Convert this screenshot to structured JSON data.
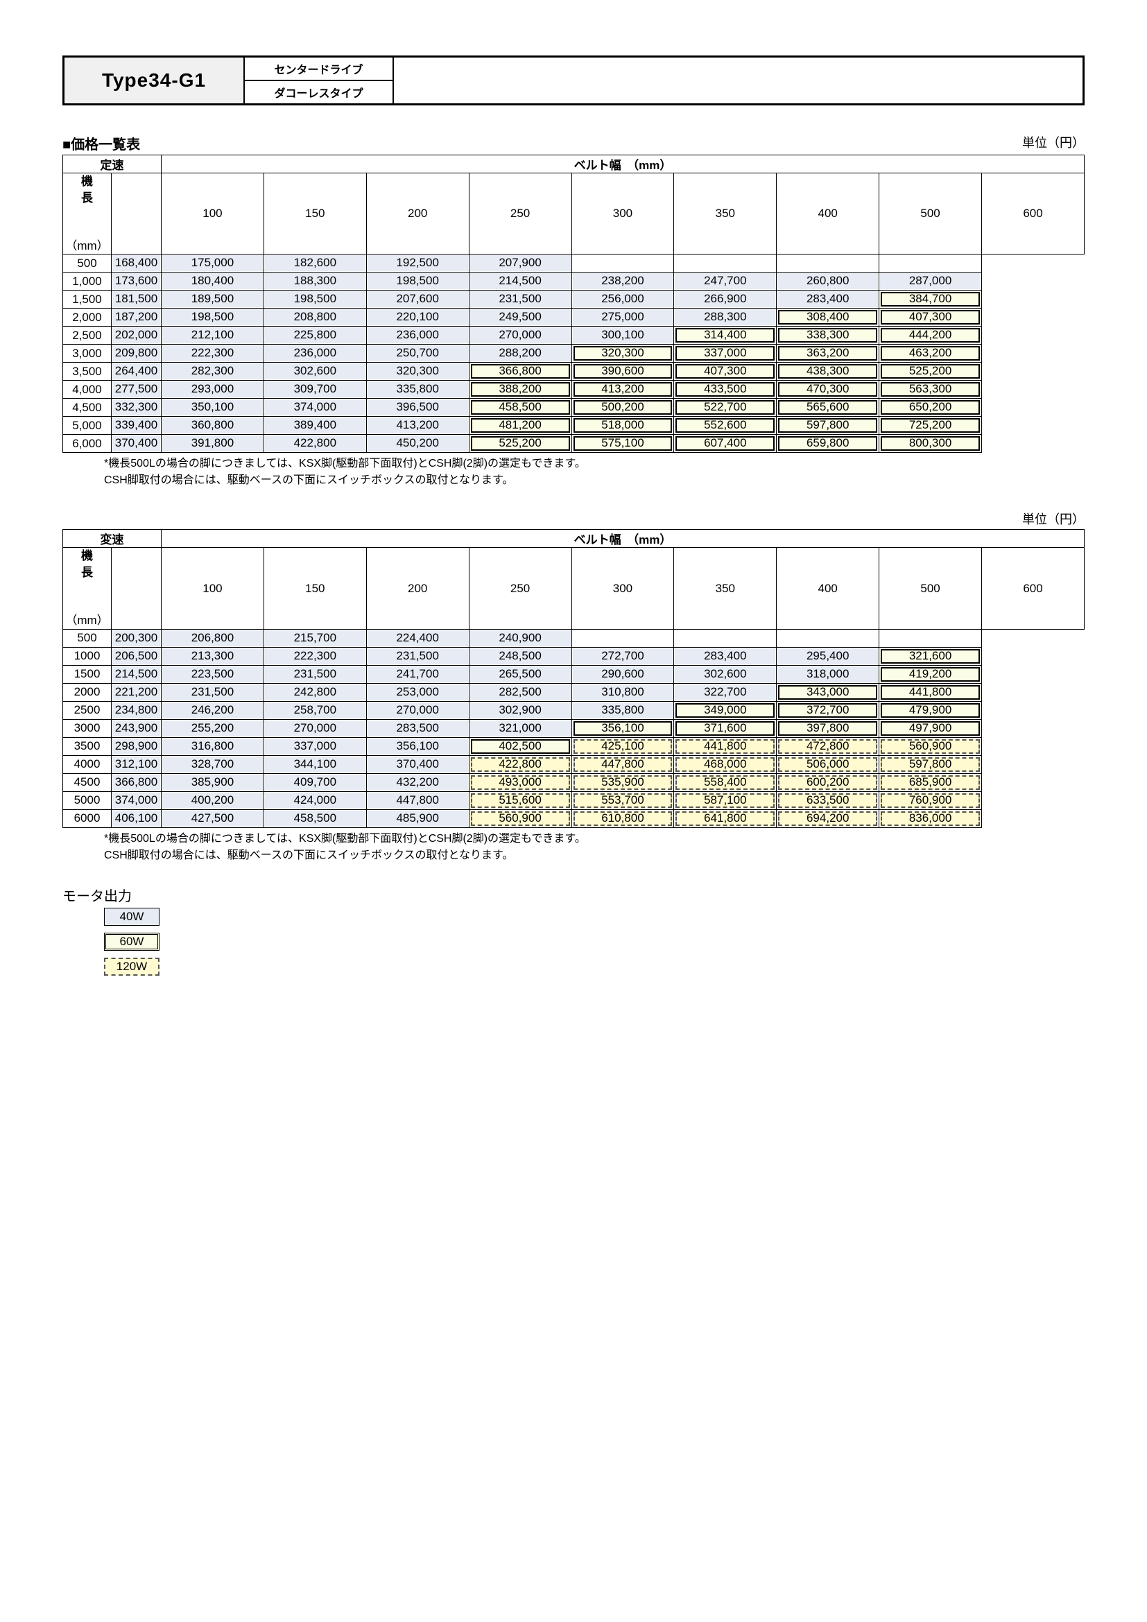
{
  "header": {
    "type": "Type34-G1",
    "line1": "センタードライブ",
    "line2": "ダコーレスタイプ"
  },
  "priceList": {
    "title": "■価格一覧表",
    "unit": "単位（円）"
  },
  "labels": {
    "beltWidth": "ベルト幅　（mm）",
    "fixedSpeed": "定速",
    "varSpeed": "変速",
    "length": "機\n長",
    "lengthUnit": "（mm）"
  },
  "widths": [
    "100",
    "150",
    "200",
    "250",
    "300",
    "350",
    "400",
    "500",
    "600"
  ],
  "table1": {
    "lengths": [
      "500",
      "1,000",
      "1,500",
      "2,000",
      "2,500",
      "3,000",
      "3,500",
      "4,000",
      "4,500",
      "5,000",
      "6,000"
    ],
    "cells": [
      [
        [
          "168,400",
          "40"
        ],
        [
          "175,000",
          "40"
        ],
        [
          "182,600",
          "40"
        ],
        [
          "192,500",
          "40"
        ],
        [
          "207,900",
          "40"
        ],
        [
          "",
          "blank"
        ],
        [
          "",
          "blank"
        ],
        [
          "",
          "blank"
        ],
        [
          "",
          "blank"
        ]
      ],
      [
        [
          "173,600",
          "40"
        ],
        [
          "180,400",
          "40"
        ],
        [
          "188,300",
          "40"
        ],
        [
          "198,500",
          "40"
        ],
        [
          "214,500",
          "40"
        ],
        [
          "238,200",
          "40"
        ],
        [
          "247,700",
          "40"
        ],
        [
          "260,800",
          "40"
        ],
        [
          "287,000",
          "40"
        ]
      ],
      [
        [
          "181,500",
          "40"
        ],
        [
          "189,500",
          "40"
        ],
        [
          "198,500",
          "40"
        ],
        [
          "207,600",
          "40"
        ],
        [
          "231,500",
          "40"
        ],
        [
          "256,000",
          "40"
        ],
        [
          "266,900",
          "40"
        ],
        [
          "283,400",
          "40"
        ],
        [
          "384,700",
          "60"
        ]
      ],
      [
        [
          "187,200",
          "40"
        ],
        [
          "198,500",
          "40"
        ],
        [
          "208,800",
          "40"
        ],
        [
          "220,100",
          "40"
        ],
        [
          "249,500",
          "40"
        ],
        [
          "275,000",
          "40"
        ],
        [
          "288,300",
          "40"
        ],
        [
          "308,400",
          "60"
        ],
        [
          "407,300",
          "60"
        ]
      ],
      [
        [
          "202,000",
          "40"
        ],
        [
          "212,100",
          "40"
        ],
        [
          "225,800",
          "40"
        ],
        [
          "236,000",
          "40"
        ],
        [
          "270,000",
          "40"
        ],
        [
          "300,100",
          "40"
        ],
        [
          "314,400",
          "60"
        ],
        [
          "338,300",
          "60"
        ],
        [
          "444,200",
          "60"
        ]
      ],
      [
        [
          "209,800",
          "40"
        ],
        [
          "222,300",
          "40"
        ],
        [
          "236,000",
          "40"
        ],
        [
          "250,700",
          "40"
        ],
        [
          "288,200",
          "40"
        ],
        [
          "320,300",
          "60"
        ],
        [
          "337,000",
          "60"
        ],
        [
          "363,200",
          "60"
        ],
        [
          "463,200",
          "60"
        ]
      ],
      [
        [
          "264,400",
          "40"
        ],
        [
          "282,300",
          "40"
        ],
        [
          "302,600",
          "40"
        ],
        [
          "320,300",
          "40"
        ],
        [
          "366,800",
          "60"
        ],
        [
          "390,600",
          "60"
        ],
        [
          "407,300",
          "60"
        ],
        [
          "438,300",
          "60"
        ],
        [
          "525,200",
          "60"
        ]
      ],
      [
        [
          "277,500",
          "40"
        ],
        [
          "293,000",
          "40"
        ],
        [
          "309,700",
          "40"
        ],
        [
          "335,800",
          "40"
        ],
        [
          "388,200",
          "60"
        ],
        [
          "413,200",
          "60"
        ],
        [
          "433,500",
          "60"
        ],
        [
          "470,300",
          "60"
        ],
        [
          "563,300",
          "60"
        ]
      ],
      [
        [
          "332,300",
          "40"
        ],
        [
          "350,100",
          "40"
        ],
        [
          "374,000",
          "40"
        ],
        [
          "396,500",
          "40"
        ],
        [
          "458,500",
          "60"
        ],
        [
          "500,200",
          "60"
        ],
        [
          "522,700",
          "60"
        ],
        [
          "565,600",
          "60"
        ],
        [
          "650,200",
          "60"
        ]
      ],
      [
        [
          "339,400",
          "40"
        ],
        [
          "360,800",
          "40"
        ],
        [
          "389,400",
          "40"
        ],
        [
          "413,200",
          "40"
        ],
        [
          "481,200",
          "60"
        ],
        [
          "518,000",
          "60"
        ],
        [
          "552,600",
          "60"
        ],
        [
          "597,800",
          "60"
        ],
        [
          "725,200",
          "60"
        ]
      ],
      [
        [
          "370,400",
          "40"
        ],
        [
          "391,800",
          "40"
        ],
        [
          "422,800",
          "40"
        ],
        [
          "450,200",
          "40"
        ],
        [
          "525,200",
          "60"
        ],
        [
          "575,100",
          "60"
        ],
        [
          "607,400",
          "60"
        ],
        [
          "659,800",
          "60"
        ],
        [
          "800,300",
          "60"
        ]
      ]
    ]
  },
  "table2": {
    "lengths": [
      "500",
      "1000",
      "1500",
      "2000",
      "2500",
      "3000",
      "3500",
      "4000",
      "4500",
      "5000",
      "6000"
    ],
    "cells": [
      [
        [
          "200,300",
          "40"
        ],
        [
          "206,800",
          "40"
        ],
        [
          "215,700",
          "40"
        ],
        [
          "224,400",
          "40"
        ],
        [
          "240,900",
          "40"
        ],
        [
          "",
          "blank"
        ],
        [
          "",
          "blank"
        ],
        [
          "",
          "blank"
        ],
        [
          "",
          "blank"
        ]
      ],
      [
        [
          "206,500",
          "40"
        ],
        [
          "213,300",
          "40"
        ],
        [
          "222,300",
          "40"
        ],
        [
          "231,500",
          "40"
        ],
        [
          "248,500",
          "40"
        ],
        [
          "272,700",
          "40"
        ],
        [
          "283,400",
          "40"
        ],
        [
          "295,400",
          "40"
        ],
        [
          "321,600",
          "60"
        ]
      ],
      [
        [
          "214,500",
          "40"
        ],
        [
          "223,500",
          "40"
        ],
        [
          "231,500",
          "40"
        ],
        [
          "241,700",
          "40"
        ],
        [
          "265,500",
          "40"
        ],
        [
          "290,600",
          "40"
        ],
        [
          "302,600",
          "40"
        ],
        [
          "318,000",
          "40"
        ],
        [
          "419,200",
          "60"
        ]
      ],
      [
        [
          "221,200",
          "40"
        ],
        [
          "231,500",
          "40"
        ],
        [
          "242,800",
          "40"
        ],
        [
          "253,000",
          "40"
        ],
        [
          "282,500",
          "40"
        ],
        [
          "310,800",
          "40"
        ],
        [
          "322,700",
          "40"
        ],
        [
          "343,000",
          "60"
        ],
        [
          "441,800",
          "60"
        ]
      ],
      [
        [
          "234,800",
          "40"
        ],
        [
          "246,200",
          "40"
        ],
        [
          "258,700",
          "40"
        ],
        [
          "270,000",
          "40"
        ],
        [
          "302,900",
          "40"
        ],
        [
          "335,800",
          "40"
        ],
        [
          "349,000",
          "60"
        ],
        [
          "372,700",
          "60"
        ],
        [
          "479,900",
          "60"
        ]
      ],
      [
        [
          "243,900",
          "40"
        ],
        [
          "255,200",
          "40"
        ],
        [
          "270,000",
          "40"
        ],
        [
          "283,500",
          "40"
        ],
        [
          "321,000",
          "40"
        ],
        [
          "356,100",
          "60"
        ],
        [
          "371,600",
          "60"
        ],
        [
          "397,800",
          "60"
        ],
        [
          "497,900",
          "60"
        ]
      ],
      [
        [
          "298,900",
          "40"
        ],
        [
          "316,800",
          "40"
        ],
        [
          "337,000",
          "40"
        ],
        [
          "356,100",
          "40"
        ],
        [
          "402,500",
          "60"
        ],
        [
          "425,100",
          "120"
        ],
        [
          "441,800",
          "120"
        ],
        [
          "472,800",
          "120"
        ],
        [
          "560,900",
          "120"
        ]
      ],
      [
        [
          "312,100",
          "40"
        ],
        [
          "328,700",
          "40"
        ],
        [
          "344,100",
          "40"
        ],
        [
          "370,400",
          "40"
        ],
        [
          "422,800",
          "120"
        ],
        [
          "447,800",
          "120"
        ],
        [
          "468,000",
          "120"
        ],
        [
          "506,000",
          "120"
        ],
        [
          "597,800",
          "120"
        ]
      ],
      [
        [
          "366,800",
          "40"
        ],
        [
          "385,900",
          "40"
        ],
        [
          "409,700",
          "40"
        ],
        [
          "432,200",
          "40"
        ],
        [
          "493,000",
          "120"
        ],
        [
          "535,900",
          "120"
        ],
        [
          "558,400",
          "120"
        ],
        [
          "600,200",
          "120"
        ],
        [
          "685,900",
          "120"
        ]
      ],
      [
        [
          "374,000",
          "40"
        ],
        [
          "400,200",
          "40"
        ],
        [
          "424,000",
          "40"
        ],
        [
          "447,800",
          "40"
        ],
        [
          "515,600",
          "120"
        ],
        [
          "553,700",
          "120"
        ],
        [
          "587,100",
          "120"
        ],
        [
          "633,500",
          "120"
        ],
        [
          "760,900",
          "120"
        ]
      ],
      [
        [
          "406,100",
          "40"
        ],
        [
          "427,500",
          "40"
        ],
        [
          "458,500",
          "40"
        ],
        [
          "485,900",
          "40"
        ],
        [
          "560,900",
          "120"
        ],
        [
          "610,800",
          "120"
        ],
        [
          "641,800",
          "120"
        ],
        [
          "694,200",
          "120"
        ],
        [
          "836,000",
          "120"
        ]
      ]
    ]
  },
  "note": {
    "line1": "*機長500Lの場合の脚につきましては、KSX脚(駆動部下面取付)とCSH脚(2脚)の選定もできます。",
    "line2": "CSH脚取付の場合には、駆動ベースの下面にスイッチボックスの取付となります。"
  },
  "motor": {
    "title": "モータ出力",
    "w40": "40W",
    "w60": "60W",
    "w120": "120W"
  }
}
